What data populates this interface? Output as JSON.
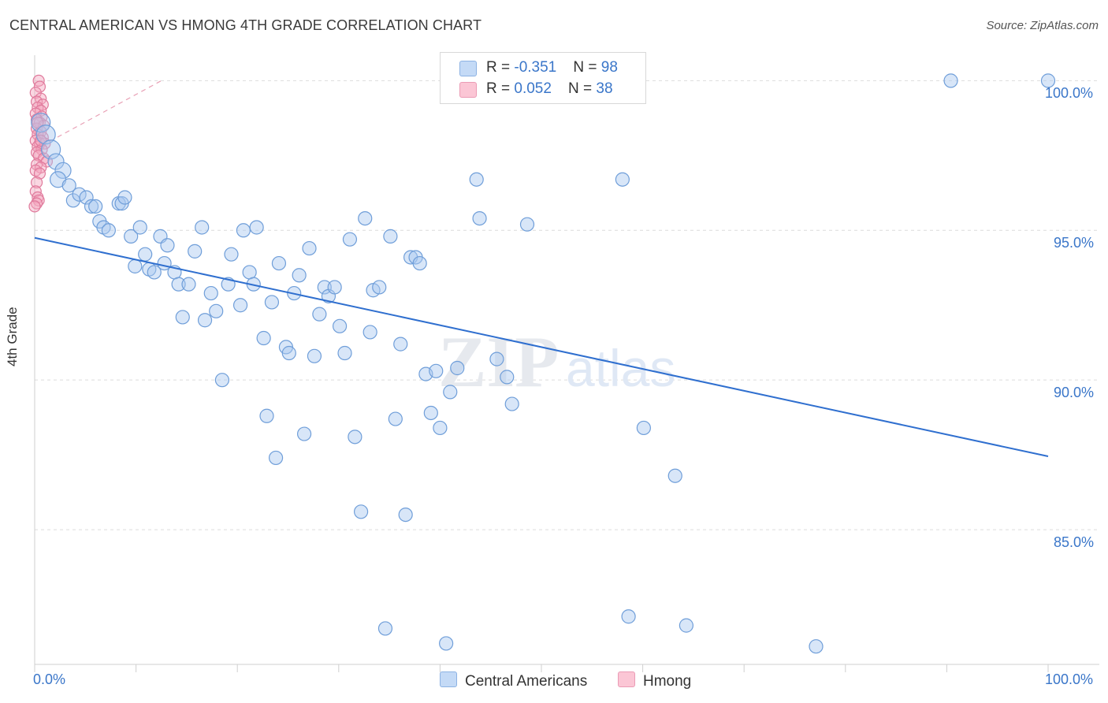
{
  "title": "CENTRAL AMERICAN VS HMONG 4TH GRADE CORRELATION CHART",
  "source": "Source: ZipAtlas.com",
  "colors": {
    "blue_fill": "#a9c8f0",
    "blue_stroke": "#6f9ed9",
    "blue_line": "#2f6fcf",
    "pink_fill": "#f5a7bf",
    "pink_stroke": "#e07a9c",
    "pink_line": "#e8a0b5",
    "tick_text": "#3a76c9"
  },
  "legend_top": {
    "rows": [
      {
        "r_label": "R = ",
        "r_value": "-0.351",
        "n_label": "N = ",
        "n_value": "98"
      },
      {
        "r_label": "R = ",
        "r_value": "0.052",
        "n_label": "N = ",
        "n_value": "38"
      }
    ]
  },
  "legend_bottom": {
    "items": [
      {
        "label": "Central Americans"
      },
      {
        "label": "Hmong"
      }
    ]
  },
  "chart_data": {
    "type": "scatter",
    "title": "CENTRAL AMERICAN VS HMONG 4TH GRADE CORRELATION CHART",
    "xlabel": "",
    "ylabel": "4th Grade",
    "xlim": [
      0,
      100
    ],
    "ylim": [
      80.5,
      100.8
    ],
    "x_tick_labels": [
      "0.0%",
      "100.0%"
    ],
    "y_ticks": [
      {
        "value": 100,
        "label": "100.0%"
      },
      {
        "value": 95,
        "label": "95.0%"
      },
      {
        "value": 90,
        "label": "90.0%"
      },
      {
        "value": 85,
        "label": "85.0%"
      }
    ],
    "grid": "horizontal dashed",
    "legend_placement": "top-center and bottom",
    "watermark": "ZIPatlas",
    "series": [
      {
        "name": "Central Americans",
        "R": -0.351,
        "N": 98,
        "trend": {
          "x": [
            0,
            100
          ],
          "y": [
            94.75,
            87.45
          ]
        },
        "points": [
          [
            0.6,
            98.6
          ],
          [
            1.1,
            98.2
          ],
          [
            1.6,
            97.7
          ],
          [
            2.1,
            97.3
          ],
          [
            2.8,
            97.0
          ],
          [
            2.3,
            96.7
          ],
          [
            3.4,
            96.5
          ],
          [
            3.8,
            96.0
          ],
          [
            4.4,
            96.2
          ],
          [
            5.1,
            96.1
          ],
          [
            5.6,
            95.8
          ],
          [
            6.0,
            95.8
          ],
          [
            6.4,
            95.3
          ],
          [
            6.8,
            95.1
          ],
          [
            7.3,
            95.0
          ],
          [
            8.3,
            95.9
          ],
          [
            8.6,
            95.9
          ],
          [
            8.9,
            96.1
          ],
          [
            9.5,
            94.8
          ],
          [
            9.9,
            93.8
          ],
          [
            10.4,
            95.1
          ],
          [
            10.9,
            94.2
          ],
          [
            11.3,
            93.7
          ],
          [
            11.8,
            93.6
          ],
          [
            12.4,
            94.8
          ],
          [
            12.8,
            93.9
          ],
          [
            13.1,
            94.5
          ],
          [
            13.8,
            93.6
          ],
          [
            14.2,
            93.2
          ],
          [
            14.6,
            92.1
          ],
          [
            15.2,
            93.2
          ],
          [
            15.8,
            94.3
          ],
          [
            16.5,
            95.1
          ],
          [
            16.8,
            92.0
          ],
          [
            17.4,
            92.9
          ],
          [
            17.9,
            92.3
          ],
          [
            18.5,
            90.0
          ],
          [
            19.1,
            93.2
          ],
          [
            19.4,
            94.2
          ],
          [
            20.3,
            92.5
          ],
          [
            20.6,
            95.0
          ],
          [
            21.2,
            93.6
          ],
          [
            21.6,
            93.2
          ],
          [
            21.9,
            95.1
          ],
          [
            22.6,
            91.4
          ],
          [
            22.9,
            88.8
          ],
          [
            23.4,
            92.6
          ],
          [
            23.8,
            87.4
          ],
          [
            24.1,
            93.9
          ],
          [
            24.8,
            91.1
          ],
          [
            25.1,
            90.9
          ],
          [
            25.6,
            92.9
          ],
          [
            26.1,
            93.5
          ],
          [
            26.6,
            88.2
          ],
          [
            27.1,
            94.4
          ],
          [
            27.6,
            90.8
          ],
          [
            28.1,
            92.2
          ],
          [
            28.6,
            93.1
          ],
          [
            29.0,
            92.8
          ],
          [
            29.6,
            93.1
          ],
          [
            30.1,
            91.8
          ],
          [
            30.6,
            90.9
          ],
          [
            31.1,
            94.7
          ],
          [
            31.6,
            88.1
          ],
          [
            32.2,
            85.6
          ],
          [
            32.6,
            95.4
          ],
          [
            33.1,
            91.6
          ],
          [
            33.4,
            93.0
          ],
          [
            34.0,
            93.1
          ],
          [
            34.6,
            81.7
          ],
          [
            35.1,
            94.8
          ],
          [
            35.6,
            88.7
          ],
          [
            36.1,
            91.2
          ],
          [
            36.6,
            85.5
          ],
          [
            37.1,
            94.1
          ],
          [
            37.6,
            94.1
          ],
          [
            38.0,
            93.9
          ],
          [
            38.6,
            90.2
          ],
          [
            39.1,
            88.9
          ],
          [
            39.6,
            90.3
          ],
          [
            40.0,
            88.4
          ],
          [
            40.6,
            81.2
          ],
          [
            41.0,
            89.6
          ],
          [
            41.7,
            90.4
          ],
          [
            43.6,
            96.7
          ],
          [
            43.9,
            95.4
          ],
          [
            45.6,
            90.7
          ],
          [
            46.6,
            90.1
          ],
          [
            47.1,
            89.2
          ],
          [
            48.6,
            95.2
          ],
          [
            49.3,
            100.0
          ],
          [
            58.0,
            96.7
          ],
          [
            58.6,
            82.1
          ],
          [
            60.1,
            88.4
          ],
          [
            63.2,
            86.8
          ],
          [
            64.3,
            81.8
          ],
          [
            77.1,
            81.1
          ],
          [
            90.4,
            100.0
          ],
          [
            100.0,
            100.0
          ]
        ]
      },
      {
        "name": "Hmong",
        "R": 0.052,
        "N": 38,
        "trend": {
          "x": [
            0,
            12.5
          ],
          "y": [
            97.7,
            100.0
          ]
        },
        "points": [
          [
            0.4,
            100.0
          ],
          [
            0.5,
            99.8
          ],
          [
            0.1,
            99.6
          ],
          [
            0.6,
            99.4
          ],
          [
            0.2,
            99.3
          ],
          [
            0.8,
            99.2
          ],
          [
            0.3,
            99.1
          ],
          [
            0.6,
            99.0
          ],
          [
            0.1,
            98.9
          ],
          [
            0.7,
            98.8
          ],
          [
            0.2,
            98.7
          ],
          [
            0.5,
            98.6
          ],
          [
            0.9,
            98.5
          ],
          [
            0.2,
            98.4
          ],
          [
            0.6,
            98.3
          ],
          [
            0.3,
            98.2
          ],
          [
            0.8,
            98.1
          ],
          [
            0.1,
            98.0
          ],
          [
            0.5,
            97.9
          ],
          [
            1.0,
            97.9
          ],
          [
            0.3,
            97.8
          ],
          [
            0.7,
            97.7
          ],
          [
            0.2,
            97.6
          ],
          [
            0.4,
            97.5
          ],
          [
            0.9,
            97.4
          ],
          [
            1.2,
            97.3
          ],
          [
            0.2,
            97.2
          ],
          [
            0.6,
            97.1
          ],
          [
            0.1,
            97.0
          ],
          [
            0.5,
            96.9
          ],
          [
            0.2,
            96.6
          ],
          [
            0.1,
            96.3
          ],
          [
            0.3,
            96.1
          ],
          [
            0.4,
            96.0
          ],
          [
            0.2,
            95.9
          ],
          [
            0.0,
            95.8
          ],
          [
            0.6,
            98.0
          ],
          [
            0.3,
            98.6
          ]
        ]
      }
    ]
  }
}
